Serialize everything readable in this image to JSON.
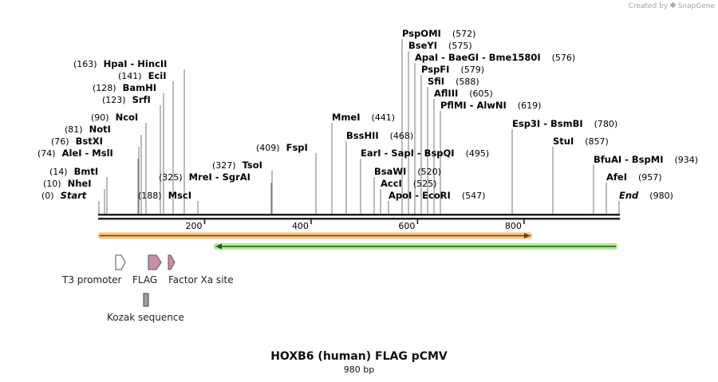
{
  "credit": {
    "prefix": "Created by",
    "brand": "SnapGene",
    "logo_icon": "snapgene-logo-icon"
  },
  "title": "HOXB6 (human) FLAG pCMV",
  "subtitle": "980 bp",
  "sequence_length": 980,
  "ruler": {
    "ticks": [
      200,
      400,
      600,
      800
    ]
  },
  "colors": {
    "backbone": "#222222",
    "orange_arrow": "#f5b460",
    "green_arrow": "#a6e28a",
    "t3_promoter": "#ffffff",
    "flag": "#c98fa8",
    "factor_xa": "#c98fa8",
    "kozak": "#9aa0a6"
  },
  "sites": [
    {
      "name": "Start",
      "pos": "(0)",
      "italic": true,
      "bp": 0
    },
    {
      "name": "NheI",
      "pos": "(10)",
      "bp": 10
    },
    {
      "name": "BmtI",
      "pos": "(14)",
      "bp": 14
    },
    {
      "name": "AleI  -  MslI",
      "pos": "(74)",
      "bp": 74
    },
    {
      "name": "BstXI",
      "pos": "(76)",
      "bp": 76
    },
    {
      "name": "NotI",
      "pos": "(81)",
      "bp": 81
    },
    {
      "name": "NcoI",
      "pos": "(90)",
      "bp": 90
    },
    {
      "name": "MscI",
      "pos": "(188)",
      "bp": 188
    },
    {
      "name": "SrfI",
      "pos": "(123)",
      "bp": 123
    },
    {
      "name": "BamHI",
      "pos": "(128)",
      "bp": 128
    },
    {
      "name": "EciI",
      "pos": "(141)",
      "bp": 141
    },
    {
      "name": "HpaI  -  HincII",
      "pos": "(163)",
      "bp": 163
    },
    {
      "name": "MreI  -  SgrAI",
      "pos": "(325)",
      "bp": 325
    },
    {
      "name": "TsoI",
      "pos": "(327)",
      "bp": 327
    },
    {
      "name": "FspI",
      "pos": "(409)",
      "bp": 409
    },
    {
      "name": "MmeI",
      "pos": "(441)",
      "bp": 441
    },
    {
      "name": "BssHII",
      "pos": "(468)",
      "bp": 468
    },
    {
      "name": "EarI  -  SapI  -  BspQI",
      "pos": "(495)",
      "bp": 495
    },
    {
      "name": "BsaWI",
      "pos": "(520)",
      "bp": 520
    },
    {
      "name": "AccI",
      "pos": "(525)",
      "bp": 525
    },
    {
      "name": "ApoI  -  EcoRI",
      "pos": "(547)",
      "bp": 547
    },
    {
      "name": "PspOMI",
      "pos": "(572)",
      "bp": 572
    },
    {
      "name": "BseYI",
      "pos": "(575)",
      "bp": 575
    },
    {
      "name": "ApaI  -  BaeGI  -  Bme1580I",
      "pos": "(576)",
      "bp": 576
    },
    {
      "name": "PspFI",
      "pos": "(579)",
      "bp": 579
    },
    {
      "name": "SfiI",
      "pos": "(588)",
      "bp": 588
    },
    {
      "name": "AflIII",
      "pos": "(605)",
      "bp": 605
    },
    {
      "name": "PflMI  -  AlwNI",
      "pos": "(619)",
      "bp": 619
    },
    {
      "name": "Esp3I  -  BsmBI",
      "pos": "(780)",
      "bp": 780
    },
    {
      "name": "StuI",
      "pos": "(857)",
      "bp": 857
    },
    {
      "name": "BfuAI  -  BspMI",
      "pos": "(934)",
      "bp": 934
    },
    {
      "name": "AfeI",
      "pos": "(957)",
      "bp": 957
    },
    {
      "name": "End",
      "pos": "(980)",
      "italic": true,
      "bp": 980
    }
  ],
  "features": [
    {
      "name": "T3 promoter",
      "icon": "t3-promoter-arrow-icon"
    },
    {
      "name": "FLAG",
      "icon": "flag-arrow-icon"
    },
    {
      "name": "Factor Xa site",
      "icon": "factor-xa-arrow-icon"
    },
    {
      "name": "Kozak sequence",
      "icon": "kozak-box-icon"
    }
  ]
}
